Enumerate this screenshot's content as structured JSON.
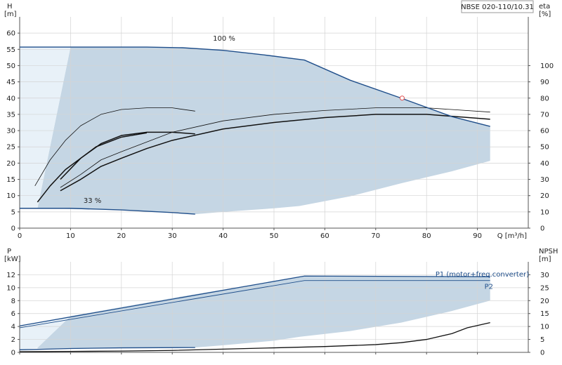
{
  "chart_data": [
    {
      "type": "line",
      "name": "head",
      "title": "NBSE 020-110/10.31",
      "xlabel": "Q [m³/h]",
      "ylabel_left_line1": "H",
      "ylabel_left_line2": "[m]",
      "ylabel_right_line1": "eta",
      "ylabel_right_line2": "[%]",
      "xlim": [
        0,
        100
      ],
      "ylim": [
        0,
        65
      ],
      "y2lim": [
        0,
        130
      ],
      "x_ticks": [
        0,
        10,
        20,
        30,
        40,
        50,
        60,
        70,
        80,
        90
      ],
      "y_ticks": [
        0,
        5,
        10,
        15,
        20,
        25,
        30,
        35,
        40,
        45,
        50,
        55,
        60
      ],
      "y2_ticks": [
        0,
        10,
        20,
        30,
        40,
        50,
        60,
        70,
        80,
        90,
        100
      ],
      "grid": true,
      "colors": {
        "curve": "#1f4e8a",
        "fill": "#c5d6e4",
        "fill_light": "#e8f1f8",
        "eta": "#111111"
      },
      "head_max": {
        "label": "100 %",
        "x": [
          0,
          10,
          20,
          25,
          32,
          40,
          48,
          56,
          65,
          75,
          85,
          92.5
        ],
        "y": [
          55.7,
          55.7,
          55.7,
          55.7,
          55.5,
          54.7,
          53.3,
          51.7,
          45.5,
          40,
          34.3,
          31.3
        ]
      },
      "head_min": {
        "label": "33 %",
        "x": [
          0,
          10,
          20,
          30,
          34.5
        ],
        "y": [
          6.1,
          6.1,
          5.6,
          4.8,
          4.3
        ]
      },
      "operating_point": {
        "x": 75.2,
        "y": 40
      },
      "eta_curves": [
        {
          "style": "thick",
          "x": [
            8,
            12,
            16,
            20,
            25,
            30,
            34.5
          ],
          "y": [
            15,
            21.5,
            26,
            28.5,
            29.5,
            29.5,
            29
          ]
        },
        {
          "style": "thick",
          "x": [
            3.5,
            6,
            9,
            12,
            15,
            20,
            25
          ],
          "y": [
            8,
            13,
            18,
            21.5,
            25,
            28,
            29.3
          ]
        },
        {
          "style": "thick",
          "x": [
            8,
            12,
            16,
            20,
            25,
            30,
            40,
            50,
            60,
            70,
            80,
            92.5
          ],
          "y": [
            11.5,
            15,
            19,
            21.5,
            24.5,
            27,
            30.5,
            32.5,
            34,
            35,
            35,
            33.5
          ]
        },
        {
          "style": "thin",
          "x": [
            3,
            6,
            9,
            12,
            16,
            20,
            25,
            30,
            34.5
          ],
          "y": [
            13,
            21,
            27,
            31.5,
            35,
            36.5,
            37,
            37,
            36
          ]
        },
        {
          "style": "thin",
          "x": [
            8,
            12,
            16,
            20,
            25,
            30,
            40,
            50,
            60,
            70,
            80,
            92.5
          ],
          "y": [
            12.5,
            16.5,
            21,
            23.5,
            26.5,
            29.5,
            33,
            35,
            36.2,
            37,
            37,
            35.7
          ]
        }
      ],
      "shaded_region": {
        "upper": {
          "x": [
            3.5,
            10,
            20,
            30,
            40,
            48,
            56,
            65,
            75,
            85,
            92.5
          ],
          "y": [
            6.1,
            55.7,
            55.7,
            55.6,
            54.7,
            53.3,
            51.7,
            45.5,
            40,
            34.3,
            31.3
          ]
        },
        "lower": {
          "x": [
            92.5,
            85,
            75,
            65,
            55,
            50,
            40,
            34.5,
            30,
            20,
            3.5
          ],
          "y": [
            20.7,
            17.5,
            13.8,
            9.8,
            6.8,
            6.1,
            5,
            4.3,
            4.8,
            5.6,
            6.1
          ]
        }
      },
      "light_region": {
        "x": [
          0,
          10,
          3.5,
          0
        ],
        "y": [
          55.7,
          55.7,
          6.1,
          6.1
        ]
      }
    },
    {
      "type": "line",
      "name": "power",
      "xlabel": "",
      "ylabel_left_line1": "P",
      "ylabel_left_line2": "[kW]",
      "ylabel_right_line1": "NPSH",
      "ylabel_right_line2": "[m]",
      "xlim": [
        0,
        100
      ],
      "ylim": [
        0,
        14
      ],
      "y2lim": [
        0,
        35
      ],
      "y_ticks": [
        0,
        2,
        4,
        6,
        8,
        10,
        12
      ],
      "y2_ticks": [
        0,
        5,
        10,
        15,
        20,
        25,
        30
      ],
      "grid": true,
      "P1": {
        "label": "P1 (motor+freq.converter)",
        "x": [
          0,
          56,
          92.5
        ],
        "y": [
          4.1,
          11.8,
          11.7
        ]
      },
      "P2": {
        "label": "P2",
        "x": [
          0,
          56,
          92.5
        ],
        "y": [
          3.8,
          11.1,
          11.1
        ]
      },
      "power_min": {
        "x": [
          0,
          10,
          20,
          34.5
        ],
        "y": [
          0.4,
          0.6,
          0.7,
          0.75
        ]
      },
      "npsh": {
        "x": [
          0,
          10,
          20,
          30,
          40,
          50,
          60,
          70,
          75,
          80,
          85,
          88,
          92.5
        ],
        "y": [
          0.1,
          0.15,
          0.2,
          0.3,
          0.5,
          0.7,
          0.9,
          1.2,
          1.5,
          2,
          2.9,
          3.8,
          4.6
        ]
      },
      "shaded_region": {
        "upper": {
          "x": [
            3.5,
            10,
            20,
            30,
            40,
            56,
            92.5
          ],
          "y": [
            0.7,
            5.6,
            7.0,
            8.4,
            9.7,
            11.8,
            11.7
          ]
        },
        "lower": {
          "x": [
            92.5,
            85,
            75,
            65,
            55,
            50,
            40,
            34.5,
            20,
            3.5
          ],
          "y": [
            8.0,
            6.4,
            4.6,
            3.3,
            2.4,
            1.8,
            1.1,
            0.75,
            0.7,
            0.6
          ]
        }
      },
      "light_region": {
        "x": [
          0,
          10,
          3.5,
          0
        ],
        "y": [
          4.1,
          5.6,
          0.7,
          0.4
        ]
      }
    }
  ]
}
